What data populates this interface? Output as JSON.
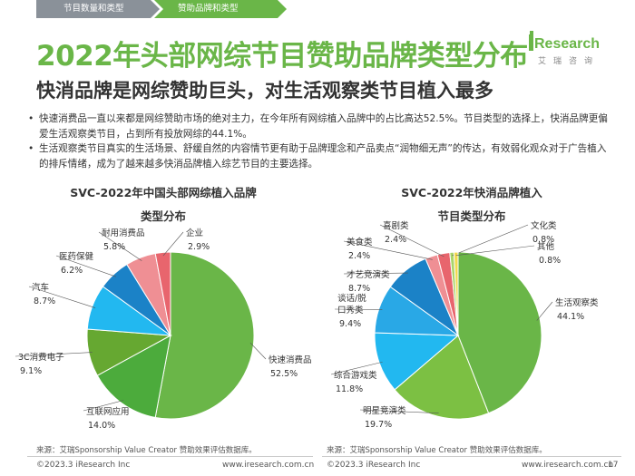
{
  "tabs": [
    "节目数量和类型",
    "赞助品牌和类型"
  ],
  "title": "2022年头部网综节目赞助品牌类型分布",
  "logo": {
    "main": "Research",
    "sub": "艾瑞咨询"
  },
  "subtitle": "快消品牌是网综赞助巨头，对生活观察类节目植入最多",
  "bullets": [
    "快速消费品一直以来都是网综赞助市场的绝对主力，在今年所有网综植入品牌中的占比高达52.5%。节目类型的选择上，快消品牌更偏爱生活观察类节目，占到所有投放网综的44.1%。",
    "生活观察类节目真实的生活场景、舒缓自然的内容情节更有助于品牌理念和产品卖点“润物细无声”的传达，有效弱化观众对于广告植入的排斥情绪，成为了越来越多快消品牌植入综艺节目的主要选择。"
  ],
  "chart_data": [
    {
      "type": "pie",
      "title_lines": [
        "SVC-2022年中国头部网综植入品牌",
        "类型分布"
      ],
      "slices": [
        {
          "label": "快速消费品",
          "value_label": "52.5%",
          "value": 52.5,
          "color": "#6ab648"
        },
        {
          "label": "互联网应用",
          "value_label": "14.0%",
          "value": 14.0,
          "color": "#4cab3c"
        },
        {
          "label": "3C消费电子",
          "value_label": "9.1%",
          "value": 9.1,
          "color": "#66a831"
        },
        {
          "label": "汽车",
          "value_label": "8.7%",
          "value": 8.7,
          "color": "#22b8f0"
        },
        {
          "label": "医药保健",
          "value_label": "6.2%",
          "value": 6.2,
          "color": "#1b82c7"
        },
        {
          "label": "耐用消费品",
          "value_label": "5.8%",
          "value": 5.8,
          "color": "#ef8f94"
        },
        {
          "label": "企业",
          "value_label": "2.9%",
          "value": 2.9,
          "color": "#e8656d"
        }
      ]
    },
    {
      "type": "pie",
      "title_lines": [
        "SVC-2022年快消品牌植入",
        "节目类型分布"
      ],
      "slices": [
        {
          "label": "生活观察类",
          "value_label": "44.1%",
          "value": 44.1,
          "color": "#6ab648"
        },
        {
          "label": "明星竞演类",
          "value_label": "19.7%",
          "value": 19.7,
          "color": "#7cc043"
        },
        {
          "label": "综合游戏类",
          "value_label": "11.8%",
          "value": 11.8,
          "color": "#22b8f0"
        },
        {
          "label": "谈话/脱口秀类",
          "value_label": "9.4%",
          "value": 9.4,
          "color": "#29a8e6"
        },
        {
          "label": "才艺竞演类",
          "value_label": "8.7%",
          "value": 8.7,
          "color": "#1b82c7"
        },
        {
          "label": "美食类",
          "value_label": "2.4%",
          "value": 2.4,
          "color": "#ef8f94"
        },
        {
          "label": "喜剧类",
          "value_label": "2.4%",
          "value": 2.4,
          "color": "#e8656d"
        },
        {
          "label": "文化类",
          "value_label": "0.8%",
          "value": 0.8,
          "color": "#a9d56a"
        },
        {
          "label": "其他",
          "value_label": "0.8%",
          "value": 0.8,
          "color": "#f2d94f"
        }
      ]
    }
  ],
  "sources": [
    "来源：艾瑞Sponsorship Value Creator 赞助效果评估数据库。",
    "来源：艾瑞Sponsorship Value Creator 赞助效果评估数据库。"
  ],
  "footers": [
    {
      "copyright": "©2023.3 iResearch Inc",
      "site": "www.iresearch.com.cn"
    },
    {
      "copyright": "©2023.3 iResearch Inc",
      "site": "www.iresearch.com.cn",
      "page": "17"
    }
  ]
}
